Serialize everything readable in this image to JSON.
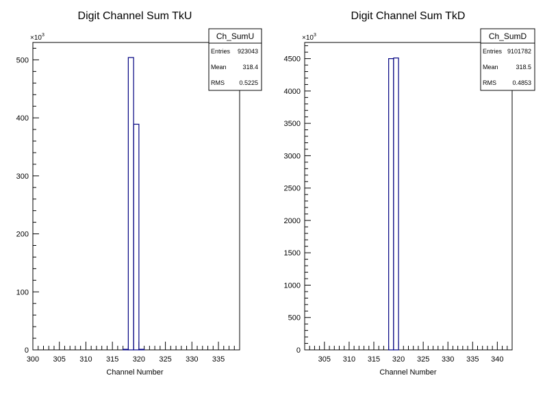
{
  "chart_data": [
    {
      "type": "bar",
      "histogram": true,
      "title": "Digit Channel Sum TkU",
      "xlabel": "Channel Number",
      "ylabel": "",
      "y_multiplier": "×10",
      "y_multiplier_exp": "3",
      "xlim": [
        300,
        339
      ],
      "ylim": [
        0,
        530
      ],
      "x_ticks": [
        300,
        305,
        310,
        315,
        320,
        325,
        330,
        335
      ],
      "y_ticks": [
        0,
        100,
        200,
        300,
        400,
        500
      ],
      "bin_width": 1,
      "series": [
        {
          "values": [
            {
              "x": 317,
              "y": 1
            },
            {
              "x": 318,
              "y": 504
            },
            {
              "x": 319,
              "y": 389
            },
            {
              "x": 320,
              "y": 1
            }
          ]
        }
      ],
      "stats": {
        "name": "Ch_SumU",
        "rows": [
          {
            "label": "Entries",
            "value": "923043"
          },
          {
            "label": "Mean",
            "value": "318.4"
          },
          {
            "label": "RMS",
            "value": "0.5225"
          }
        ]
      },
      "color": "#000080",
      "grid": false
    },
    {
      "type": "bar",
      "histogram": true,
      "title": "Digit Channel Sum TkD",
      "xlabel": "Channel Number",
      "ylabel": "",
      "y_multiplier": "×10",
      "y_multiplier_exp": "3",
      "xlim": [
        301,
        343
      ],
      "ylim": [
        0,
        4750
      ],
      "x_ticks": [
        305,
        310,
        315,
        320,
        325,
        330,
        335,
        340
      ],
      "y_ticks": [
        0,
        500,
        1000,
        1500,
        2000,
        2500,
        3000,
        3500,
        4000,
        4500
      ],
      "bin_width": 1,
      "series": [
        {
          "values": [
            {
              "x": 318,
              "y": 4500
            },
            {
              "x": 319,
              "y": 4510
            }
          ]
        }
      ],
      "stats": {
        "name": "Ch_SumD",
        "rows": [
          {
            "label": "Entries",
            "value": "9101782"
          },
          {
            "label": "Mean",
            "value": "318.5"
          },
          {
            "label": "RMS",
            "value": "0.4853"
          }
        ]
      },
      "color": "#000080",
      "grid": false
    }
  ]
}
